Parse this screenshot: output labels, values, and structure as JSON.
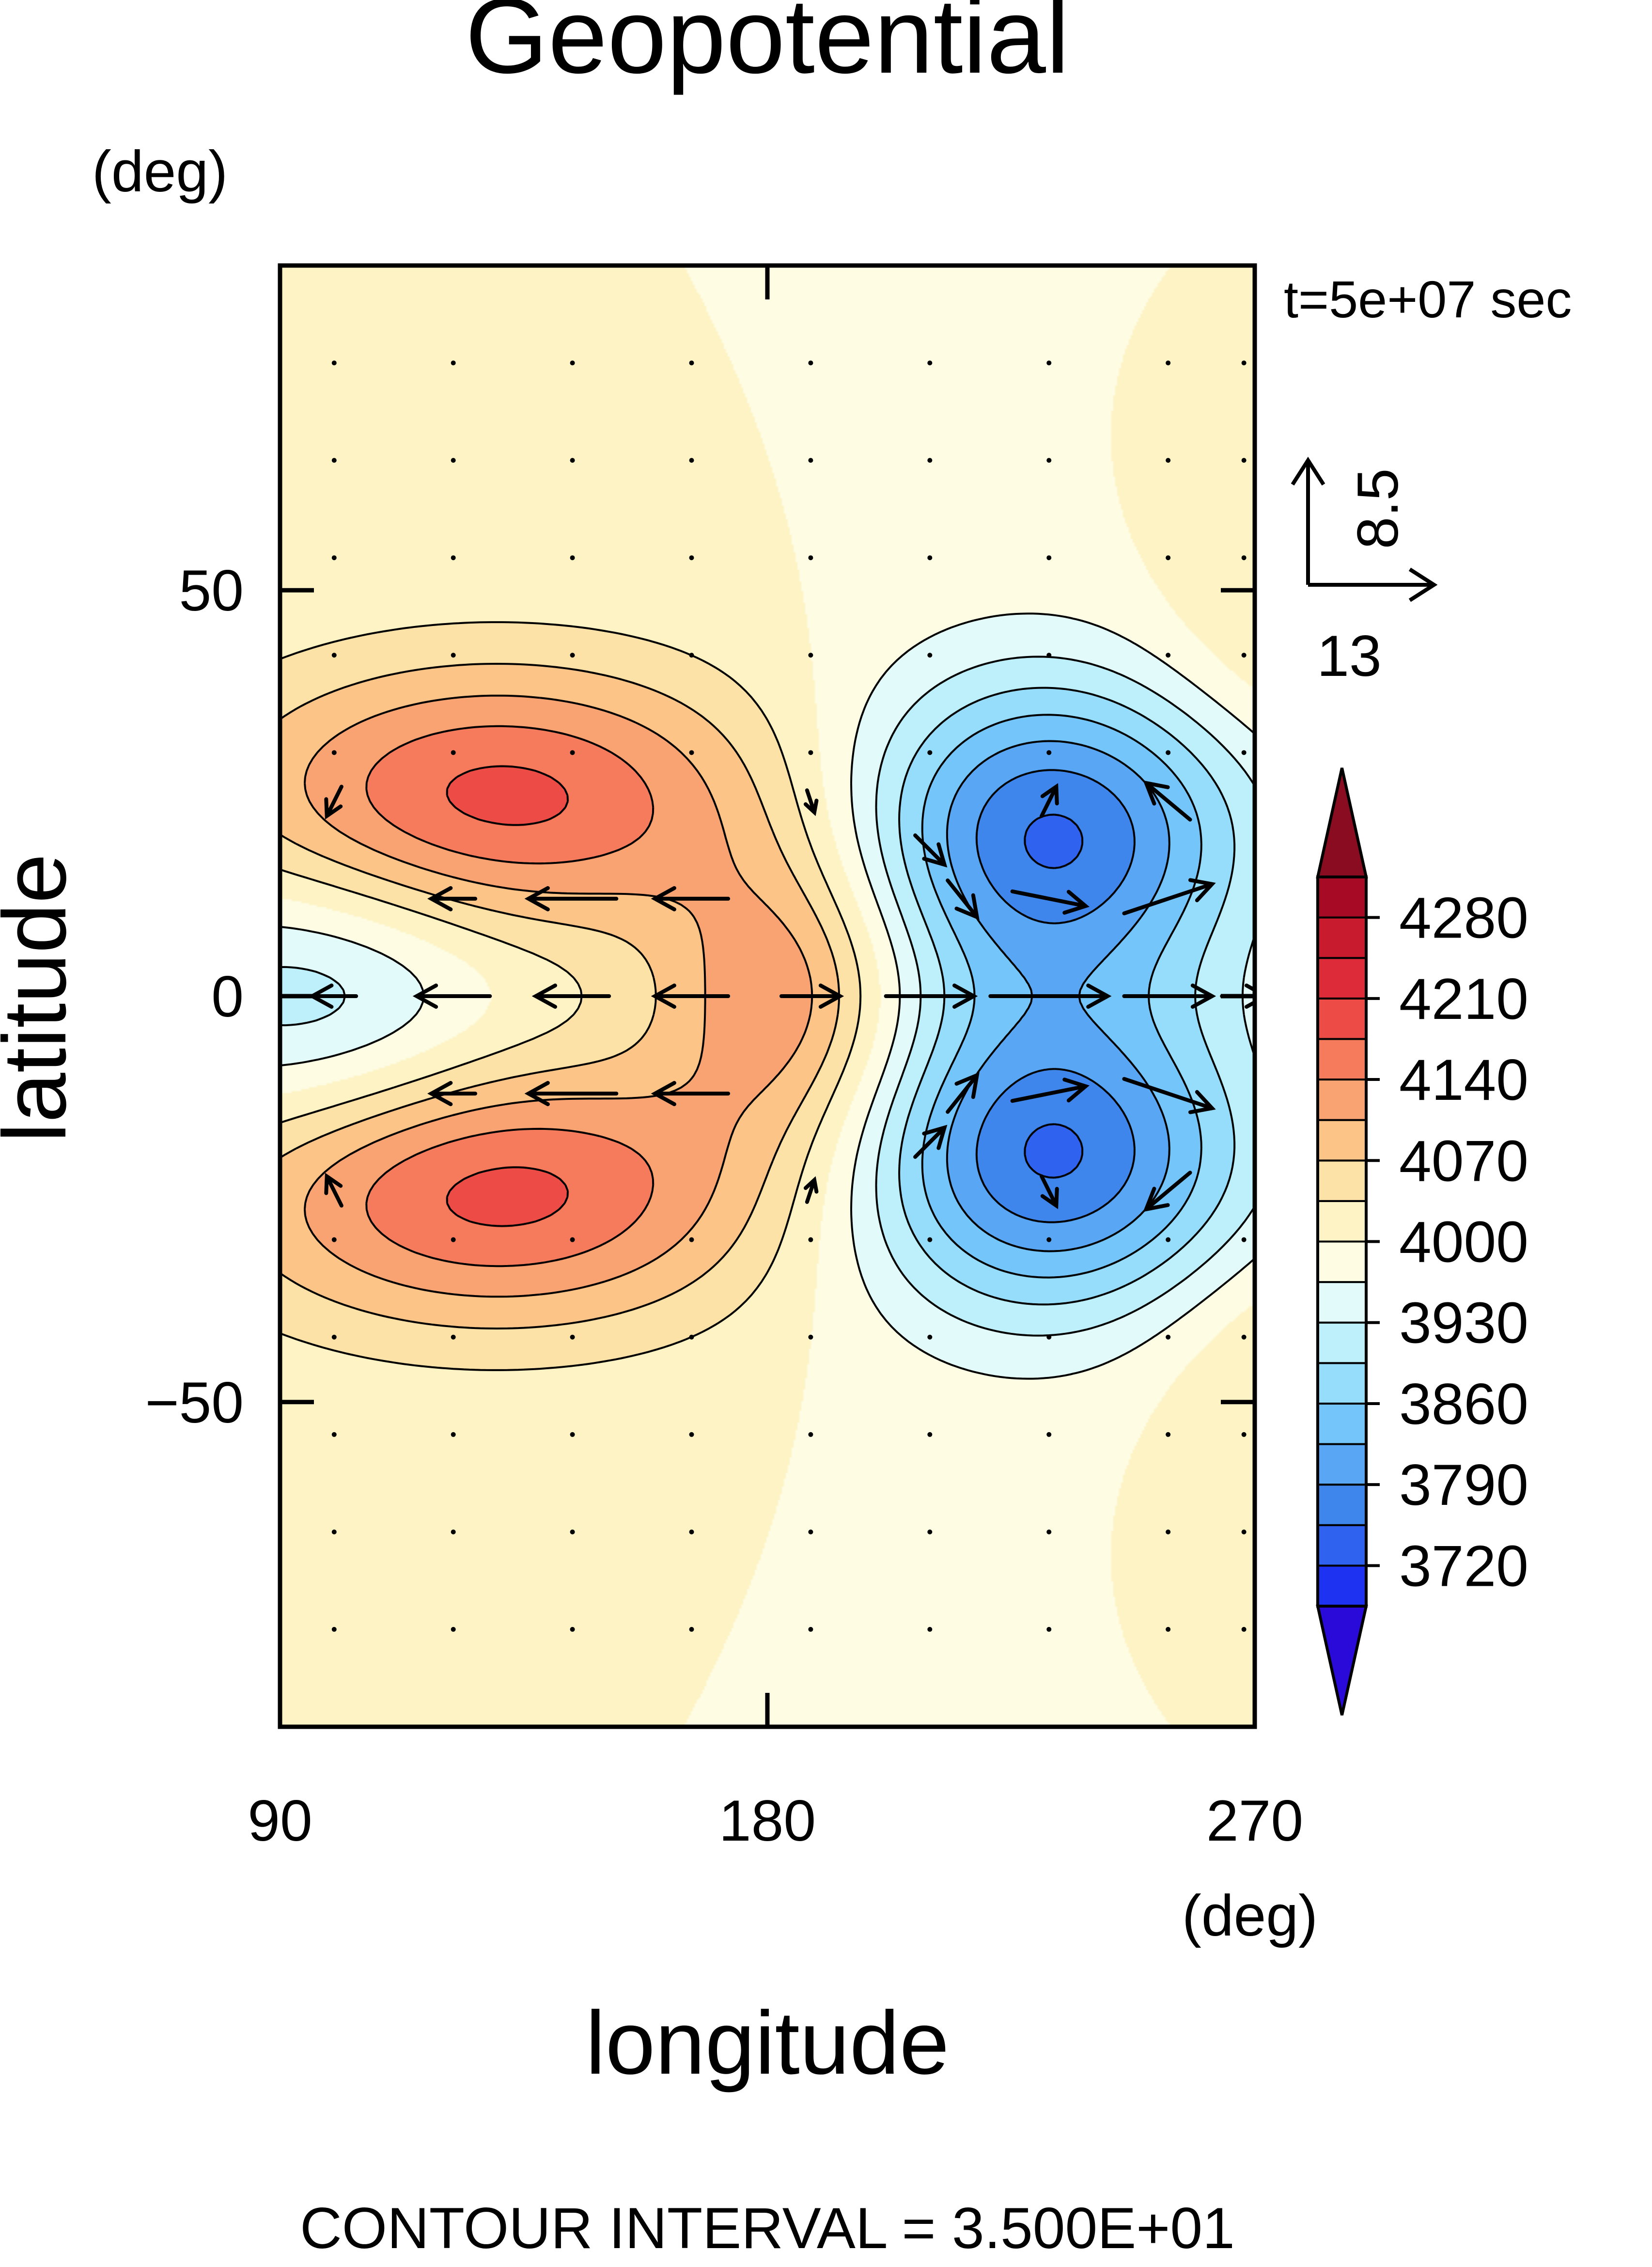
{
  "chart_data": {
    "type": "heatmap",
    "title": "Geopotential",
    "xlabel": "longitude",
    "ylabel": "latitude",
    "x_units": "(deg)",
    "y_units": "(deg)",
    "xlim": [
      90,
      270
    ],
    "ylim": [
      -90,
      90
    ],
    "x_ticks": [
      {
        "value": 90,
        "label": "90"
      },
      {
        "value": 180,
        "label": "180"
      },
      {
        "value": 270,
        "label": "270"
      }
    ],
    "y_ticks": [
      {
        "value": 50,
        "label": "50"
      },
      {
        "value": 0,
        "label": "0"
      },
      {
        "value": -50,
        "label": "−50"
      }
    ],
    "time_label": "t=5e+07 sec",
    "footer": "CONTOUR INTERVAL = 3.500E+01",
    "contour_interval": 35,
    "vector_reference": {
      "u": 13,
      "v": 8.5,
      "u_label": "13",
      "v_label": "8.5"
    },
    "colorbar": {
      "levels": [
        3685,
        3720,
        3755,
        3790,
        3825,
        3860,
        3895,
        3930,
        3965,
        4000,
        4035,
        4070,
        4105,
        4140,
        4175,
        4210,
        4245,
        4280,
        4315
      ],
      "labels": [
        {
          "value": 4280,
          "label": "4280"
        },
        {
          "value": 4210,
          "label": "4210"
        },
        {
          "value": 4140,
          "label": "4140"
        },
        {
          "value": 4070,
          "label": "4070"
        },
        {
          "value": 4000,
          "label": "4000"
        },
        {
          "value": 3930,
          "label": "3930"
        },
        {
          "value": 3860,
          "label": "3860"
        },
        {
          "value": 3790,
          "label": "3790"
        },
        {
          "value": 3720,
          "label": "3720"
        }
      ],
      "colors": [
        "#2a0ad8",
        "#1e32f2",
        "#2f62ee",
        "#3e86ec",
        "#58a6f4",
        "#74c6fa",
        "#96dcfb",
        "#bdf0fa",
        "#e2fbfa",
        "#fefde4",
        "#fdf3c5",
        "#fde2a8",
        "#fcc487",
        "#f9a272",
        "#f67b5c",
        "#ec4c45",
        "#dd2b3a",
        "#c81b2e",
        "#a60a25",
        "#8a0c21"
      ]
    },
    "field_model": {
      "base": 4000,
      "components": [
        {
          "amp": 190,
          "lon": 130,
          "lat": 24,
          "sx": 36,
          "sy": 12
        },
        {
          "amp": 190,
          "lon": 130,
          "lat": -24,
          "sx": 36,
          "sy": 12
        },
        {
          "amp": -250,
          "lon": 232,
          "lat": 20,
          "sx": 26,
          "sy": 14
        },
        {
          "amp": -250,
          "lon": 232,
          "lat": -20,
          "sx": 26,
          "sy": 14
        },
        {
          "amp": 140,
          "lon": 184,
          "lat": 0,
          "sx": 16,
          "sy": 13
        },
        {
          "amp": -110,
          "lon": 97,
          "lat": 0,
          "sx": 26,
          "sy": 12
        },
        {
          "amp": 50,
          "lon": 278,
          "lat": 44,
          "sx": 20,
          "sy": 10
        },
        {
          "amp": 50,
          "lon": 278,
          "lat": -44,
          "sx": 20,
          "sy": 10
        }
      ]
    },
    "vectors": [
      {
        "lon": 100,
        "lat": 0,
        "u": -6,
        "v": 0
      },
      {
        "lon": 122,
        "lat": 0,
        "u": -10,
        "v": 0
      },
      {
        "lon": 144,
        "lat": 0,
        "u": -10,
        "v": 0
      },
      {
        "lon": 166,
        "lat": 0,
        "u": -10,
        "v": 0
      },
      {
        "lon": 188,
        "lat": 0,
        "u": 8,
        "v": 0
      },
      {
        "lon": 210,
        "lat": 0,
        "u": 12,
        "v": 0
      },
      {
        "lon": 232,
        "lat": 0,
        "u": 16,
        "v": 0
      },
      {
        "lon": 254,
        "lat": 0,
        "u": 12,
        "v": 0
      },
      {
        "lon": 268,
        "lat": 0,
        "u": 6,
        "v": 0
      },
      {
        "lon": 122,
        "lat": 12,
        "u": -6,
        "v": 0
      },
      {
        "lon": 144,
        "lat": 12,
        "u": -12,
        "v": 0
      },
      {
        "lon": 166,
        "lat": 12,
        "u": -10,
        "v": 0
      },
      {
        "lon": 122,
        "lat": -12,
        "u": -6,
        "v": 0
      },
      {
        "lon": 144,
        "lat": -12,
        "u": -12,
        "v": 0
      },
      {
        "lon": 166,
        "lat": -12,
        "u": -10,
        "v": 0
      },
      {
        "lon": 100,
        "lat": 24,
        "u": -2,
        "v": -4
      },
      {
        "lon": 100,
        "lat": -24,
        "u": -2,
        "v": 4
      },
      {
        "lon": 216,
        "lat": 12,
        "u": 4,
        "v": -5
      },
      {
        "lon": 216,
        "lat": -12,
        "u": 4,
        "v": 5
      },
      {
        "lon": 232,
        "lat": 12,
        "u": 10,
        "v": -2
      },
      {
        "lon": 232,
        "lat": -12,
        "u": 10,
        "v": 2
      },
      {
        "lon": 254,
        "lat": 12,
        "u": 12,
        "v": 4
      },
      {
        "lon": 254,
        "lat": -12,
        "u": 12,
        "v": -4
      },
      {
        "lon": 232,
        "lat": 24,
        "u": 2,
        "v": 4
      },
      {
        "lon": 232,
        "lat": -24,
        "u": 2,
        "v": -4
      },
      {
        "lon": 254,
        "lat": 24,
        "u": -6,
        "v": 5
      },
      {
        "lon": 254,
        "lat": -24,
        "u": -6,
        "v": -5
      },
      {
        "lon": 188,
        "lat": 24,
        "u": 1,
        "v": -3
      },
      {
        "lon": 188,
        "lat": -24,
        "u": 1,
        "v": 3
      },
      {
        "lon": 210,
        "lat": 18,
        "u": 4,
        "v": -4
      },
      {
        "lon": 210,
        "lat": -18,
        "u": 4,
        "v": 4
      }
    ],
    "grid_dot_lons": [
      100,
      122,
      144,
      166,
      188,
      210,
      232,
      254,
      268
    ],
    "grid_dot_lats": [
      -78,
      -66,
      -54,
      -42,
      -30,
      30,
      42,
      54,
      66,
      78
    ]
  }
}
